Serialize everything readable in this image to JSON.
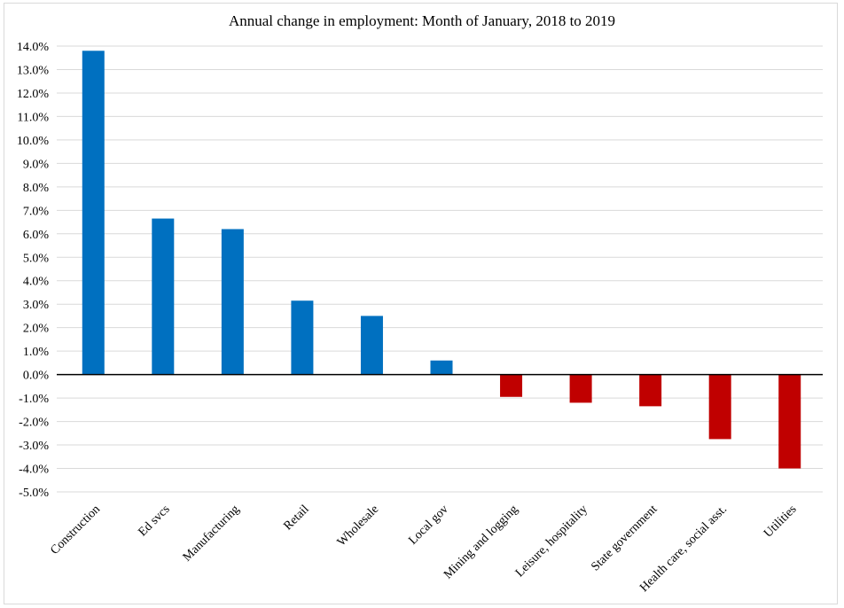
{
  "chart_data": {
    "type": "bar",
    "title": "Annual change in employment: Month of January, 2018 to 2019",
    "xlabel": "",
    "ylabel": "",
    "ylim": [
      -5.0,
      14.0
    ],
    "y_ticks": [
      "-5.0%",
      "-4.0%",
      "-3.0%",
      "-2.0%",
      "-1.0%",
      "0.0%",
      "1.0%",
      "2.0%",
      "3.0%",
      "4.0%",
      "5.0%",
      "6.0%",
      "7.0%",
      "8.0%",
      "9.0%",
      "10.0%",
      "11.0%",
      "12.0%",
      "13.0%",
      "14.0%"
    ],
    "grid": true,
    "legend": "none",
    "categories": [
      "Construction",
      "Ed svcs",
      "Manufacturing",
      "Retail",
      "Wholesale",
      "Local gov",
      "Mining and logging",
      "Leisure, hospitality",
      "State government",
      "Health care, social asst.",
      "Utilities"
    ],
    "values": [
      13.8,
      6.65,
      6.2,
      3.15,
      2.5,
      0.6,
      -0.95,
      -1.2,
      -1.35,
      -2.75,
      -4.0
    ],
    "colors": {
      "positive": "#0070c0",
      "negative": "#c00000",
      "grid": "#d9d9d9",
      "axis": "#000000"
    }
  }
}
